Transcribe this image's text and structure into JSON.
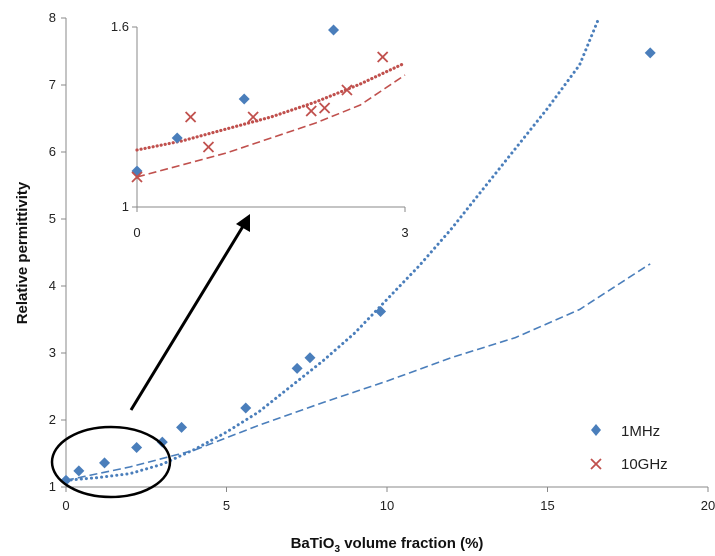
{
  "chart_data": [
    {
      "type": "scatter",
      "title": "",
      "xlabel_prefix": "BaTiO",
      "xlabel_sub": "3",
      "xlabel_suffix": " volume fraction (%)",
      "ylabel": "Relative permittivity",
      "xlim": [
        0,
        20
      ],
      "ylim": [
        1,
        8
      ],
      "xticks": [
        "0",
        "5",
        "10",
        "15",
        "20"
      ],
      "yticks": [
        "1",
        "2",
        "3",
        "4",
        "5",
        "6",
        "7",
        "8"
      ],
      "legend_position": "bottom-right",
      "grid": false,
      "series": [
        {
          "name": "1MHz",
          "kind": "scatter",
          "marker": "diamond",
          "color": "#4a7ebb",
          "points": [
            [
              0.0,
              1.1
            ],
            [
              0.4,
              1.24
            ],
            [
              1.2,
              1.36
            ],
            [
              2.2,
              1.59
            ],
            [
              3.0,
              1.67
            ],
            [
              3.6,
              1.89
            ],
            [
              5.6,
              2.18
            ],
            [
              7.2,
              2.77
            ],
            [
              7.6,
              2.93
            ],
            [
              9.8,
              3.62
            ],
            [
              18.2,
              7.48
            ]
          ]
        },
        {
          "name": "10GHz",
          "kind": "scatter",
          "marker": "x",
          "color": "#c0504d",
          "points": []
        },
        {
          "kind": "line",
          "style": "dotted",
          "color": "#4a7ebb",
          "points": [
            [
              0,
              1.1
            ],
            [
              1,
              1.14
            ],
            [
              2,
              1.2
            ],
            [
              3,
              1.34
            ],
            [
              4,
              1.56
            ],
            [
              5,
              1.82
            ],
            [
              6,
              2.12
            ],
            [
              7,
              2.5
            ],
            [
              8,
              2.88
            ],
            [
              9,
              3.3
            ],
            [
              10,
              3.8
            ],
            [
              11,
              4.3
            ],
            [
              12,
              4.85
            ],
            [
              13,
              5.45
            ],
            [
              14,
              6.05
            ],
            [
              15,
              6.65
            ],
            [
              16,
              7.3
            ],
            [
              16.6,
              8.0
            ]
          ]
        },
        {
          "kind": "line",
          "style": "dashed",
          "color": "#4a7ebb",
          "points": [
            [
              0,
              1.1
            ],
            [
              2,
              1.3
            ],
            [
              4,
              1.55
            ],
            [
              6,
              1.92
            ],
            [
              8,
              2.26
            ],
            [
              10,
              2.58
            ],
            [
              12,
              2.93
            ],
            [
              14,
              3.23
            ],
            [
              16,
              3.65
            ],
            [
              18,
              4.27
            ],
            [
              18.2,
              4.33
            ]
          ]
        }
      ]
    },
    {
      "type": "scatter",
      "title": "",
      "xlim": [
        0,
        3
      ],
      "ylim": [
        1,
        1.6
      ],
      "xticks": [
        "0",
        "3"
      ],
      "yticks": [
        "1",
        "1.6"
      ],
      "series": [
        {
          "name": "1MHz",
          "kind": "scatter",
          "marker": "diamond",
          "color": "#4a7ebb",
          "points": [
            [
              0.0,
              1.12
            ],
            [
              0.45,
              1.23
            ],
            [
              1.2,
              1.36
            ],
            [
              2.2,
              1.59
            ]
          ]
        },
        {
          "name": "10GHz",
          "kind": "scatter",
          "marker": "x",
          "color": "#c0504d",
          "points": [
            [
              0.0,
              1.1
            ],
            [
              0.6,
              1.3
            ],
            [
              0.8,
              1.2
            ],
            [
              1.3,
              1.3
            ],
            [
              1.95,
              1.32
            ],
            [
              2.1,
              1.33
            ],
            [
              2.35,
              1.39
            ],
            [
              2.75,
              1.5
            ]
          ]
        },
        {
          "kind": "line",
          "style": "dotted",
          "color": "#c0504d",
          "points": [
            [
              0,
              1.19
            ],
            [
              0.5,
              1.22
            ],
            [
              1,
              1.26
            ],
            [
              1.5,
              1.3
            ],
            [
              2,
              1.35
            ],
            [
              2.5,
              1.41
            ],
            [
              3,
              1.48
            ]
          ]
        },
        {
          "kind": "line",
          "style": "dashed",
          "color": "#c0504d",
          "points": [
            [
              0,
              1.1
            ],
            [
              0.5,
              1.14
            ],
            [
              1,
              1.18
            ],
            [
              1.5,
              1.23
            ],
            [
              2,
              1.28
            ],
            [
              2.5,
              1.34
            ],
            [
              3,
              1.44
            ]
          ]
        }
      ]
    }
  ]
}
